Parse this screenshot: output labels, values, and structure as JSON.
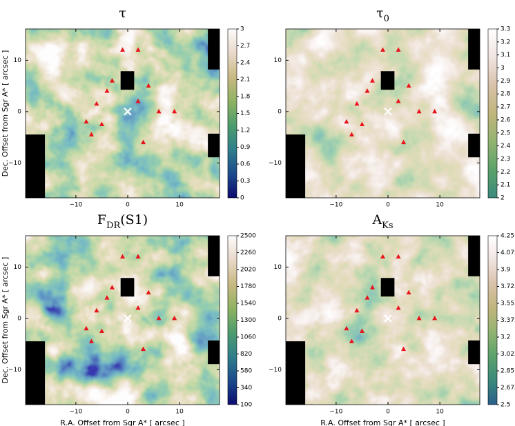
{
  "chart_data": [
    {
      "type": "heatmap",
      "title_parts": [
        {
          "text": "τ"
        }
      ],
      "ylabel": "Dec. Offset from Sgr A* [ arcsec ]",
      "xlim": [
        -19.7,
        17.7
      ],
      "ylim": [
        -16.8,
        16.1
      ],
      "xticks": [
        {
          "value": -10,
          "label": "−10"
        },
        0,
        10
      ],
      "yticks": [
        {
          "value": -10,
          "label": "−10"
        },
        0,
        10
      ],
      "colorbar": {
        "lim": [
          0,
          3
        ],
        "ticks": [
          0,
          0.3,
          0.6,
          0.9,
          1.2,
          1.5,
          1.8,
          2.1,
          2.4,
          2.7,
          3
        ]
      },
      "colormap": [
        "#0b0b70",
        "#1d4b8c",
        "#2f7f8c",
        "#4c9c6c",
        "#8fb262",
        "#c9b982",
        "#e9d9ca",
        "#fdfbfb"
      ],
      "sources": {
        "color": "#e8141c",
        "x": [
          -1,
          2,
          -3,
          -4,
          -6,
          -5,
          -8,
          2,
          4,
          6,
          9,
          -7,
          3
        ],
        "y": [
          12,
          12,
          6,
          4,
          1.5,
          -2.5,
          -2,
          2,
          5,
          0,
          0,
          -4.5,
          -6
        ]
      },
      "center_marker": {
        "x": 0,
        "y": 0,
        "color": "#ffffff"
      }
    },
    {
      "type": "heatmap",
      "title_parts": [
        {
          "text": "τ"
        },
        {
          "text": "0",
          "sub": true
        }
      ],
      "xlim": [
        -19.7,
        17.7
      ],
      "ylim": [
        -16.8,
        16.1
      ],
      "xticks": [
        {
          "value": -10,
          "label": "−10"
        },
        0,
        10
      ],
      "yticks": [
        {
          "value": -10,
          "label": "−10"
        },
        0,
        10
      ],
      "colorbar": {
        "lim": [
          2,
          3.3
        ],
        "ticks": [
          2,
          2.1,
          2.2,
          2.3,
          2.4,
          2.5,
          2.6,
          2.7,
          2.8,
          2.9,
          3,
          3.1,
          3.2,
          3.3
        ]
      },
      "colormap": [
        "#3b8a7c",
        "#5ca26b",
        "#92b371",
        "#c1b57d",
        "#d9c2aa",
        "#f1e5e1",
        "#ffffff"
      ],
      "sources": {
        "color": "#e8141c",
        "x": [
          -1,
          2,
          -3,
          -4,
          -6,
          -5,
          -8,
          2,
          4,
          6,
          9,
          -7,
          3
        ],
        "y": [
          12,
          12,
          6,
          4,
          1.5,
          -2.5,
          -2,
          2,
          5,
          0,
          0,
          -4.5,
          -6
        ]
      },
      "center_marker": {
        "x": 0,
        "y": 0,
        "color": "#ffffff"
      }
    },
    {
      "type": "heatmap",
      "title_parts": [
        {
          "text": "F"
        },
        {
          "text": "DR",
          "sub": true
        },
        {
          "text": "(S1)"
        }
      ],
      "xlabel": "R.A. Offset from Sgr A* [ arcsec ]",
      "ylabel": "Dec. Offset from Sgr A* [ arcsec ]",
      "xlim": [
        -19.7,
        17.7
      ],
      "ylim": [
        -16.8,
        16.1
      ],
      "xticks": [
        {
          "value": -10,
          "label": "−10"
        },
        0,
        10
      ],
      "yticks": [
        {
          "value": -10,
          "label": "−10"
        },
        0,
        10
      ],
      "colorbar": {
        "lim": [
          100,
          2500
        ],
        "ticks": [
          100,
          340,
          580,
          820,
          1060,
          1300,
          1540,
          1780,
          2020,
          2260,
          2500
        ]
      },
      "colormap": [
        "#0b0b70",
        "#1d4b8c",
        "#2f7f8c",
        "#4c9c6c",
        "#8fb262",
        "#c9b982",
        "#e9d9ca",
        "#fdfbfb"
      ],
      "sources": {
        "color": "#e8141c",
        "x": [
          -1,
          2,
          -3,
          -4,
          -6,
          -5,
          -8,
          2,
          4,
          6,
          9,
          -7,
          3
        ],
        "y": [
          12,
          12,
          6,
          4,
          1.5,
          -2.5,
          -2,
          2,
          5,
          0,
          0,
          -4.5,
          -6
        ]
      },
      "center_marker": {
        "x": 0,
        "y": 0,
        "color": "#ffffff"
      }
    },
    {
      "type": "heatmap",
      "title_parts": [
        {
          "text": "A"
        },
        {
          "text": "Ks",
          "sub": true
        }
      ],
      "xlabel": "R.A. Offset from Sgr A* [ arcsec ]",
      "xlim": [
        -19.7,
        17.7
      ],
      "ylim": [
        -16.8,
        16.1
      ],
      "xticks": [
        {
          "value": -10,
          "label": "−10"
        },
        0,
        10
      ],
      "yticks": [
        {
          "value": -10,
          "label": "−10"
        },
        0,
        10
      ],
      "colorbar": {
        "lim": [
          2.5,
          4.25
        ],
        "ticks": [
          2.5,
          2.675,
          2.85,
          3.025,
          3.2,
          3.375,
          3.55,
          3.725,
          3.9,
          4.075,
          4.25
        ]
      },
      "colormap": [
        "#2a5f8a",
        "#3b8a7c",
        "#5ca26b",
        "#92b371",
        "#c1b57d",
        "#d9c2aa",
        "#f1e5e1",
        "#ffffff"
      ],
      "sources": {
        "color": "#e8141c",
        "x": [
          -1,
          2,
          -3,
          -4,
          -6,
          -5,
          -8,
          2,
          4,
          6,
          9,
          -7,
          3
        ],
        "y": [
          12,
          12,
          6,
          4,
          1.5,
          -2.5,
          -2,
          2,
          5,
          0,
          0,
          -4.5,
          -6
        ]
      },
      "center_marker": {
        "x": 0,
        "y": 0,
        "color": "#ffffff"
      }
    }
  ]
}
